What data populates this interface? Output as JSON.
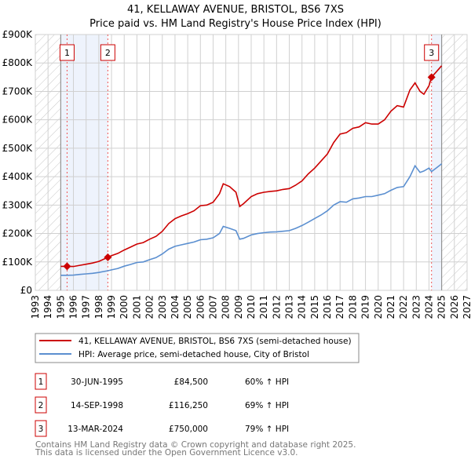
{
  "chart_data": {
    "type": "line",
    "title": "41, KELLAWAY AVENUE, BRISTOL, BS6 7XS",
    "subtitle": "Price paid vs. HM Land Registry's House Price Index (HPI)",
    "xlim": [
      1993,
      2027
    ],
    "ylim": [
      0,
      900000
    ],
    "x_ticks": [
      "1993",
      "1994",
      "1995",
      "1996",
      "1997",
      "1998",
      "1999",
      "2000",
      "2001",
      "2002",
      "2003",
      "2004",
      "2005",
      "2006",
      "2007",
      "2008",
      "2009",
      "2010",
      "2011",
      "2012",
      "2013",
      "2014",
      "2015",
      "2016",
      "2017",
      "2018",
      "2019",
      "2020",
      "2021",
      "2022",
      "2023",
      "2024",
      "2025",
      "2026",
      "2027"
    ],
    "y_ticks": [
      {
        "value": 0,
        "label": "£0"
      },
      {
        "value": 100000,
        "label": "£100K"
      },
      {
        "value": 200000,
        "label": "£200K"
      },
      {
        "value": 300000,
        "label": "£300K"
      },
      {
        "value": 400000,
        "label": "£400K"
      },
      {
        "value": 500000,
        "label": "£500K"
      },
      {
        "value": 600000,
        "label": "£600K"
      },
      {
        "value": 700000,
        "label": "£700K"
      },
      {
        "value": 800000,
        "label": "£800K"
      },
      {
        "value": 900000,
        "label": "£900K"
      }
    ],
    "grid": true,
    "hatched_ranges": [
      [
        1993,
        1995
      ],
      [
        2025,
        2027
      ]
    ],
    "shaded_ranges": [
      [
        1995,
        1998.71
      ],
      [
        2024.2,
        2025
      ]
    ],
    "series": [
      {
        "name": "41, KELLAWAY AVENUE, BRISTOL, BS6 7XS (semi-detached house)",
        "color": "#cc0000",
        "x": [
          1995.0,
          1995.5,
          1996,
          1996.5,
          1997,
          1997.5,
          1998,
          1998.71,
          1999,
          1999.5,
          2000,
          2000.5,
          2001,
          2001.5,
          2002,
          2002.5,
          2003,
          2003.5,
          2004,
          2004.5,
          2005,
          2005.5,
          2006,
          2006.5,
          2007,
          2007.5,
          2007.8,
          2008.3,
          2008.8,
          2009.1,
          2009.4,
          2010,
          2010.5,
          2011,
          2011.5,
          2012,
          2012.5,
          2013,
          2013.5,
          2014,
          2014.5,
          2015,
          2015.5,
          2016,
          2016.5,
          2017,
          2017.5,
          2018,
          2018.5,
          2019,
          2019.5,
          2020,
          2020.5,
          2021,
          2021.5,
          2022,
          2022.5,
          2022.9,
          2023.3,
          2023.6,
          2024.0,
          2024.2,
          2024.5,
          2025.0
        ],
        "y": [
          84500,
          84500,
          84000,
          88000,
          92000,
          96000,
          102000,
          116250,
          122000,
          130000,
          142000,
          152000,
          163000,
          168000,
          180000,
          190000,
          208000,
          235000,
          252000,
          262000,
          270000,
          280000,
          298000,
          300000,
          310000,
          340000,
          375000,
          365000,
          345000,
          295000,
          305000,
          330000,
          340000,
          345000,
          348000,
          350000,
          355000,
          358000,
          370000,
          385000,
          410000,
          430000,
          455000,
          480000,
          520000,
          550000,
          555000,
          570000,
          575000,
          590000,
          585000,
          585000,
          600000,
          630000,
          650000,
          645000,
          705000,
          730000,
          700000,
          690000,
          720000,
          750000,
          765000,
          790000
        ]
      },
      {
        "name": "HPI: Average price, semi-detached house, City of Bristol",
        "color": "#5b8fd0",
        "x": [
          1995.0,
          1995.5,
          1996,
          1996.5,
          1997,
          1997.5,
          1998,
          1998.71,
          1999,
          1999.5,
          2000,
          2000.5,
          2001,
          2001.5,
          2002,
          2002.5,
          2003,
          2003.5,
          2004,
          2004.5,
          2005,
          2005.5,
          2006,
          2006.5,
          2007,
          2007.5,
          2007.8,
          2008.3,
          2008.8,
          2009.1,
          2009.4,
          2010,
          2010.5,
          2011,
          2011.5,
          2012,
          2012.5,
          2013,
          2013.5,
          2014,
          2014.5,
          2015,
          2015.5,
          2016,
          2016.5,
          2017,
          2017.5,
          2018,
          2018.5,
          2019,
          2019.5,
          2020,
          2020.5,
          2021,
          2021.5,
          2022,
          2022.5,
          2022.9,
          2023.3,
          2023.6,
          2024.0,
          2024.2,
          2024.5,
          2025.0
        ],
        "y": [
          53000,
          53000,
          53500,
          56000,
          58000,
          60000,
          63000,
          69000,
          72000,
          77000,
          85000,
          91000,
          98000,
          100000,
          108000,
          115000,
          128000,
          145000,
          155000,
          160000,
          165000,
          170000,
          178000,
          180000,
          185000,
          200000,
          225000,
          218000,
          210000,
          180000,
          183000,
          195000,
          200000,
          203000,
          205000,
          206000,
          208000,
          210000,
          218000,
          228000,
          240000,
          253000,
          265000,
          280000,
          300000,
          312000,
          310000,
          322000,
          325000,
          330000,
          330000,
          335000,
          340000,
          352000,
          362000,
          365000,
          400000,
          438000,
          415000,
          420000,
          430000,
          418000,
          428000,
          445000
        ]
      }
    ],
    "markers": [
      {
        "label": "1",
        "x": 1995.5,
        "y": 84500
      },
      {
        "label": "2",
        "x": 1998.71,
        "y": 116250
      },
      {
        "label": "3",
        "x": 2024.2,
        "y": 750000
      }
    ],
    "legend_placement": "below"
  },
  "legend": {
    "items": [
      {
        "label": "41, KELLAWAY AVENUE, BRISTOL, BS6 7XS (semi-detached house)",
        "color": "#cc0000"
      },
      {
        "label": "HPI: Average price, semi-detached house, City of Bristol",
        "color": "#5b8fd0"
      }
    ]
  },
  "transactions": [
    {
      "num": "1",
      "date": "30-JUN-1995",
      "price": "£84,500",
      "hpi": "60% ↑ HPI"
    },
    {
      "num": "2",
      "date": "14-SEP-1998",
      "price": "£116,250",
      "hpi": "69% ↑ HPI"
    },
    {
      "num": "3",
      "date": "13-MAR-2024",
      "price": "£750,000",
      "hpi": "79% ↑ HPI"
    }
  ],
  "footer": {
    "line1": "Contains HM Land Registry data © Crown copyright and database right 2025.",
    "line2": "This data is licensed under the Open Government Licence v3.0."
  }
}
